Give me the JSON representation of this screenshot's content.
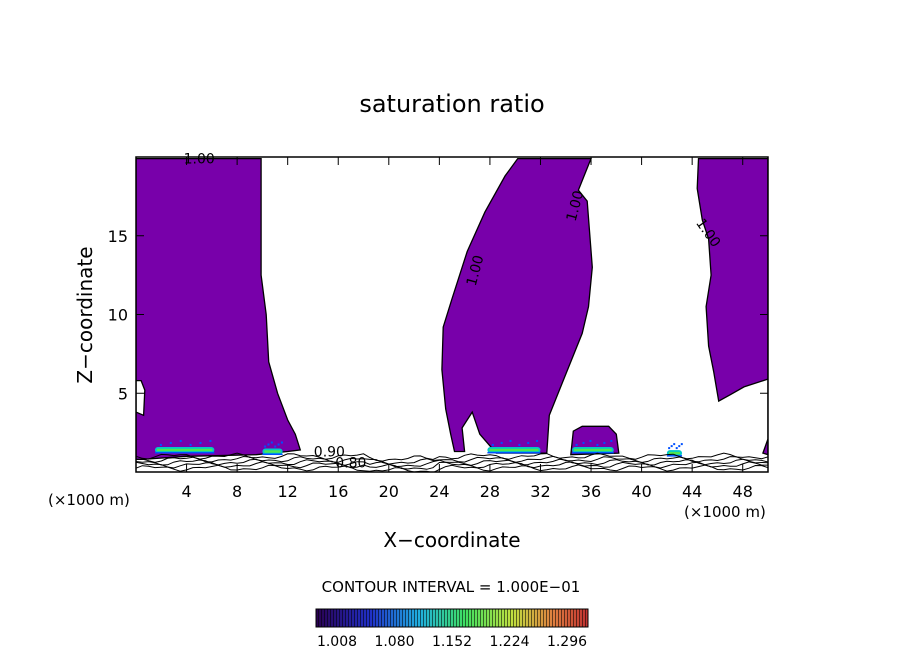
{
  "chart_data": {
    "type": "heatmap",
    "title": "saturation ratio",
    "xlabel": "X−coordinate",
    "ylabel": "Z−coordinate",
    "x_unit_label": "(×1000 m)",
    "x_unit_label_right": "(×1000 m)",
    "xlim": [
      0,
      50
    ],
    "ylim": [
      0,
      20
    ],
    "x_ticks": [
      4,
      8,
      12,
      16,
      20,
      24,
      28,
      32,
      36,
      40,
      44,
      48
    ],
    "y_ticks": [
      5,
      10,
      15
    ],
    "contour_interval_text": "CONTOUR INTERVAL = 1.000E−01",
    "contour_labels": [
      {
        "text": "1.00",
        "x": 5.0,
        "y": 19.9
      },
      {
        "text": "1.00",
        "x": 26.8,
        "y": 12.8
      },
      {
        "text": "1.00",
        "x": 34.7,
        "y": 16.9
      },
      {
        "text": "1.00",
        "x": 45.3,
        "y": 15.2
      },
      {
        "text": "0.90",
        "x": 15.3,
        "y": 1.3
      },
      {
        "text": "0.80",
        "x": 17.0,
        "y": 0.6
      }
    ],
    "colorbar": {
      "min": 1.0,
      "max": 1.32,
      "labels": [
        "1.008",
        "1.080",
        "1.152",
        "1.224",
        "1.296"
      ]
    },
    "fill_color": "#7800aa",
    "colors": {
      "fill": "#7800aa",
      "low": "#2a0050",
      "mid_blue": "#0050ff",
      "cyan": "#00c8c8",
      "green": "#50e650"
    },
    "regions": [
      {
        "name": "region-left",
        "points": [
          [
            0,
            0.8
          ],
          [
            0,
            19.9
          ],
          [
            9.9,
            19.9
          ],
          [
            9.9,
            16
          ],
          [
            9.9,
            12.5
          ],
          [
            10.3,
            10
          ],
          [
            10.5,
            7
          ],
          [
            11.2,
            5
          ],
          [
            12,
            3.3
          ],
          [
            12.6,
            2.4
          ],
          [
            13,
            1.4
          ],
          [
            12,
            1.3
          ],
          [
            9.5,
            1.1
          ],
          [
            4,
            1.0
          ],
          [
            0.5,
            0.8
          ]
        ]
      },
      {
        "name": "region-left-notch-clip",
        "points": [
          [
            0,
            3.8
          ],
          [
            0.6,
            3.6
          ],
          [
            0.7,
            5.2
          ],
          [
            0.4,
            5.8
          ],
          [
            0,
            5.8
          ]
        ]
      },
      {
        "name": "region-center",
        "points": [
          [
            30.2,
            19.9
          ],
          [
            29.2,
            18.8
          ],
          [
            27.6,
            16.5
          ],
          [
            26.2,
            14
          ],
          [
            25,
            11
          ],
          [
            24.3,
            9.2
          ],
          [
            24.2,
            6.5
          ],
          [
            24.5,
            4
          ],
          [
            24.9,
            2.4
          ],
          [
            25.2,
            1.3
          ],
          [
            26,
            1.3
          ],
          [
            25.8,
            2.8
          ],
          [
            26.6,
            3.8
          ],
          [
            27.2,
            2.4
          ],
          [
            28.5,
            1.2
          ],
          [
            32.5,
            1.2
          ],
          [
            32.7,
            3.6
          ],
          [
            33.8,
            5.8
          ],
          [
            35.3,
            8.8
          ],
          [
            35.8,
            10.5
          ],
          [
            36.1,
            13
          ],
          [
            35.7,
            17.2
          ],
          [
            35,
            17.9
          ],
          [
            36,
            19.9
          ]
        ]
      },
      {
        "name": "region-small-blob",
        "points": [
          [
            34.4,
            1.1
          ],
          [
            34.6,
            2.6
          ],
          [
            35.3,
            2.9
          ],
          [
            37.4,
            2.9
          ],
          [
            38,
            2.4
          ],
          [
            38.2,
            1.2
          ]
        ]
      },
      {
        "name": "region-right",
        "points": [
          [
            44.5,
            19.9
          ],
          [
            44.4,
            18
          ],
          [
            44.8,
            16
          ],
          [
            45.3,
            14.8
          ],
          [
            45.5,
            12.5
          ],
          [
            45.1,
            10.5
          ],
          [
            45.3,
            8
          ],
          [
            45.7,
            6.4
          ],
          [
            46.1,
            4.5
          ],
          [
            47,
            4.9
          ],
          [
            48.1,
            5.4
          ],
          [
            50,
            5.9
          ],
          [
            50,
            2.1
          ],
          [
            49.6,
            1.2
          ],
          [
            50,
            1.1
          ],
          [
            50,
            19.9
          ]
        ]
      }
    ],
    "surface_bands": [
      {
        "x_start": 1.5,
        "x_end": 6.2,
        "y": 1.4
      },
      {
        "x_start": 10.0,
        "x_end": 11.6,
        "y": 1.3
      },
      {
        "x_start": 27.8,
        "x_end": 32.0,
        "y": 1.4
      },
      {
        "x_start": 34.5,
        "x_end": 37.8,
        "y": 1.4
      },
      {
        "x_start": 42.0,
        "x_end": 43.2,
        "y": 1.2
      }
    ]
  }
}
